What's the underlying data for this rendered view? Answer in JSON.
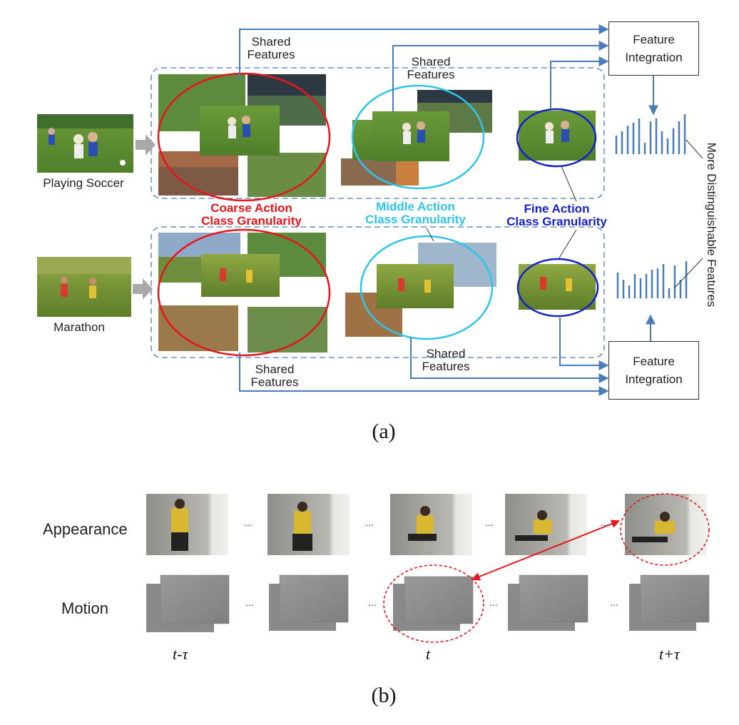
{
  "panel_a": {
    "caption": "(a)",
    "inputs": {
      "soccer": "Playing Soccer",
      "marathon": "Marathon"
    },
    "granularity": {
      "coarse": {
        "line1": "Coarse Action",
        "line2": "Class Granularity",
        "color": "#e8141c"
      },
      "middle": {
        "line1": "Middle Action",
        "line2": "Class Granularity",
        "color": "#2ec4ec"
      },
      "fine": {
        "line1": "Fine Action",
        "line2": "Class Granularity",
        "color": "#1420c8"
      }
    },
    "shared_features": {
      "line1": "Shared",
      "line2": "Features"
    },
    "feature_integration": {
      "line1": "Feature",
      "line2": "Integration"
    },
    "more_features_label": "More Distinguishable Features",
    "arrow_color": "#4a7db8"
  },
  "panel_b": {
    "caption": "(b)",
    "rows": {
      "appearance": "Appearance",
      "motion": "Motion"
    },
    "ellipsis": "...",
    "time_labels": {
      "left": "t-τ",
      "center": "t",
      "right": "t+τ"
    },
    "highlight_color": "#e8141c"
  }
}
